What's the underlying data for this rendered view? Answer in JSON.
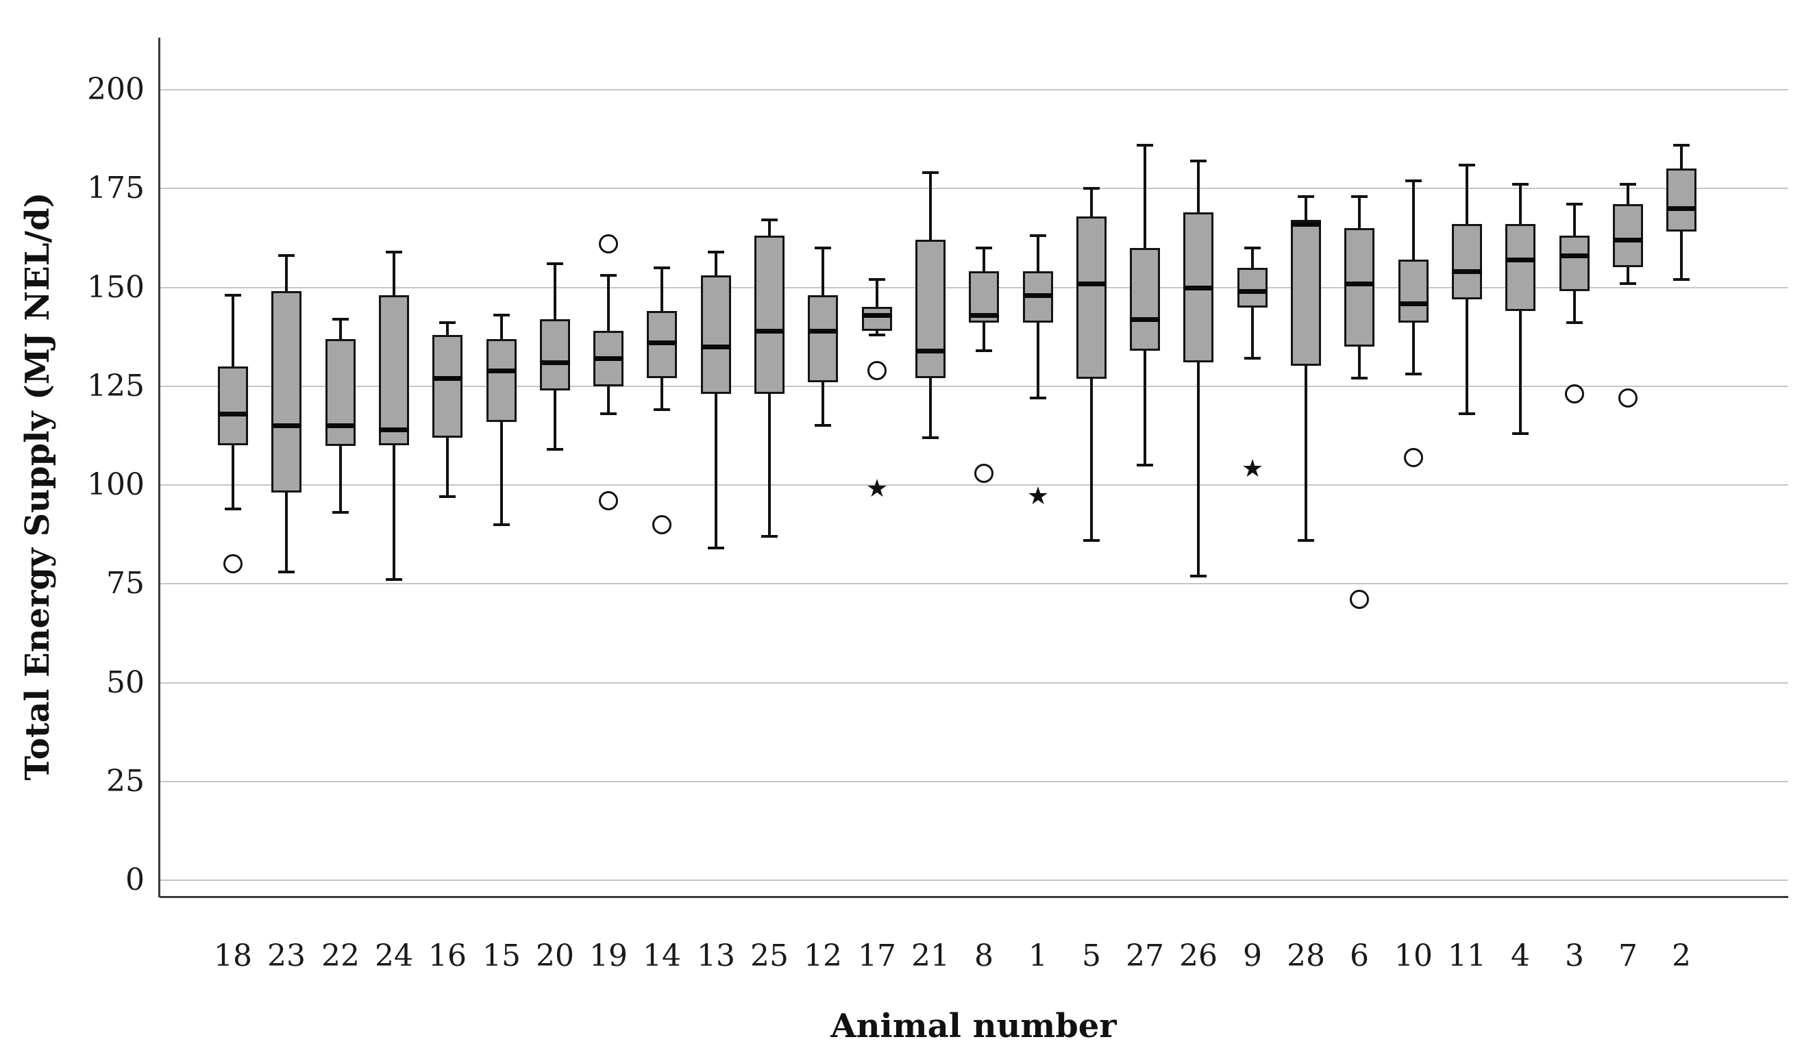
{
  "chart_data": {
    "type": "boxplot",
    "title": "",
    "xlabel": "Animal number",
    "ylabel": "Total Energy Supply (MJ NEL/d)",
    "ylim": [
      0,
      200
    ],
    "yticks": [
      200,
      175,
      150,
      125,
      100,
      75,
      50,
      25,
      0
    ],
    "grid": "horizontal",
    "legend": "none",
    "categories": [
      "18",
      "23",
      "22",
      "24",
      "16",
      "15",
      "20",
      "19",
      "14",
      "13",
      "25",
      "12",
      "17",
      "21",
      "8",
      "1",
      "5",
      "27",
      "26",
      "9",
      "28",
      "6",
      "10",
      "11",
      "4",
      "3",
      "7",
      "2"
    ],
    "boxes": [
      {
        "animal": "18",
        "whisker_low": 94,
        "q1": 110,
        "median": 118,
        "q3": 130,
        "whisker_high": 148,
        "outliers": [
          80
        ],
        "extremes": []
      },
      {
        "animal": "23",
        "whisker_low": 78,
        "q1": 98,
        "median": 115,
        "q3": 149,
        "whisker_high": 158,
        "outliers": [],
        "extremes": []
      },
      {
        "animal": "22",
        "whisker_low": 93,
        "q1": 110,
        "median": 115,
        "q3": 137,
        "whisker_high": 142,
        "outliers": [],
        "extremes": []
      },
      {
        "animal": "24",
        "whisker_low": 76,
        "q1": 110,
        "median": 114,
        "q3": 148,
        "whisker_high": 159,
        "outliers": [],
        "extremes": []
      },
      {
        "animal": "16",
        "whisker_low": 97,
        "q1": 112,
        "median": 127,
        "q3": 138,
        "whisker_high": 141,
        "outliers": [],
        "extremes": []
      },
      {
        "animal": "15",
        "whisker_low": 90,
        "q1": 116,
        "median": 129,
        "q3": 137,
        "whisker_high": 143,
        "outliers": [],
        "extremes": []
      },
      {
        "animal": "20",
        "whisker_low": 109,
        "q1": 124,
        "median": 131,
        "q3": 142,
        "whisker_high": 156,
        "outliers": [],
        "extremes": []
      },
      {
        "animal": "19",
        "whisker_low": 118,
        "q1": 125,
        "median": 132,
        "q3": 139,
        "whisker_high": 153,
        "outliers": [
          161,
          96
        ],
        "extremes": []
      },
      {
        "animal": "14",
        "whisker_low": 119,
        "q1": 127,
        "median": 136,
        "q3": 144,
        "whisker_high": 155,
        "outliers": [
          90
        ],
        "extremes": []
      },
      {
        "animal": "13",
        "whisker_low": 84,
        "q1": 123,
        "median": 135,
        "q3": 153,
        "whisker_high": 159,
        "outliers": [],
        "extremes": []
      },
      {
        "animal": "25",
        "whisker_low": 87,
        "q1": 123,
        "median": 139,
        "q3": 163,
        "whisker_high": 167,
        "outliers": [],
        "extremes": []
      },
      {
        "animal": "12",
        "whisker_low": 115,
        "q1": 126,
        "median": 139,
        "q3": 148,
        "whisker_high": 160,
        "outliers": [],
        "extremes": []
      },
      {
        "animal": "17",
        "whisker_low": 138,
        "q1": 139,
        "median": 143,
        "q3": 145,
        "whisker_high": 152,
        "outliers": [
          129
        ],
        "extremes": [
          99
        ]
      },
      {
        "animal": "21",
        "whisker_low": 112,
        "q1": 127,
        "median": 134,
        "q3": 162,
        "whisker_high": 179,
        "outliers": [],
        "extremes": []
      },
      {
        "animal": "8",
        "whisker_low": 134,
        "q1": 141,
        "median": 143,
        "q3": 154,
        "whisker_high": 160,
        "outliers": [
          103
        ],
        "extremes": []
      },
      {
        "animal": "1",
        "whisker_low": 122,
        "q1": 141,
        "median": 148,
        "q3": 154,
        "whisker_high": 163,
        "outliers": [],
        "extremes": [
          97
        ]
      },
      {
        "animal": "5",
        "whisker_low": 86,
        "q1": 127,
        "median": 151,
        "q3": 168,
        "whisker_high": 175,
        "outliers": [],
        "extremes": []
      },
      {
        "animal": "27",
        "whisker_low": 105,
        "q1": 134,
        "median": 142,
        "q3": 160,
        "whisker_high": 186,
        "outliers": [],
        "extremes": []
      },
      {
        "animal": "26",
        "whisker_low": 77,
        "q1": 131,
        "median": 150,
        "q3": 169,
        "whisker_high": 182,
        "outliers": [],
        "extremes": []
      },
      {
        "animal": "9",
        "whisker_low": 132,
        "q1": 145,
        "median": 149,
        "q3": 155,
        "whisker_high": 160,
        "outliers": [],
        "extremes": [
          104
        ]
      },
      {
        "animal": "28",
        "whisker_low": 86,
        "q1": 130,
        "median": 166,
        "q3": 167,
        "whisker_high": 173,
        "outliers": [],
        "extremes": []
      },
      {
        "animal": "6",
        "whisker_low": 127,
        "q1": 135,
        "median": 151,
        "q3": 165,
        "whisker_high": 173,
        "outliers": [
          71
        ],
        "extremes": []
      },
      {
        "animal": "10",
        "whisker_low": 128,
        "q1": 141,
        "median": 146,
        "q3": 157,
        "whisker_high": 177,
        "outliers": [
          107
        ],
        "extremes": []
      },
      {
        "animal": "11",
        "whisker_low": 118,
        "q1": 147,
        "median": 154,
        "q3": 166,
        "whisker_high": 181,
        "outliers": [],
        "extremes": []
      },
      {
        "animal": "4",
        "whisker_low": 113,
        "q1": 144,
        "median": 157,
        "q3": 166,
        "whisker_high": 176,
        "outliers": [],
        "extremes": []
      },
      {
        "animal": "3",
        "whisker_low": 141,
        "q1": 149,
        "median": 158,
        "q3": 163,
        "whisker_high": 171,
        "outliers": [
          123
        ],
        "extremes": []
      },
      {
        "animal": "7",
        "whisker_low": 151,
        "q1": 155,
        "median": 162,
        "q3": 171,
        "whisker_high": 176,
        "outliers": [
          122
        ],
        "extremes": []
      },
      {
        "animal": "2",
        "whisker_low": 152,
        "q1": 164,
        "median": 170,
        "q3": 180,
        "whisker_high": 186,
        "outliers": [],
        "extremes": []
      }
    ]
  },
  "markers": {
    "outlier_symbol": "circle",
    "extreme_symbol": "star"
  },
  "colors": {
    "box_fill": "#a6a6a6",
    "box_border": "#141414",
    "median": "#0a0a0a",
    "whisker": "#111111",
    "grid": "#c6c6c6",
    "axis": "#3a3a3a",
    "text": "#1a1a1a",
    "background": "#ffffff"
  }
}
